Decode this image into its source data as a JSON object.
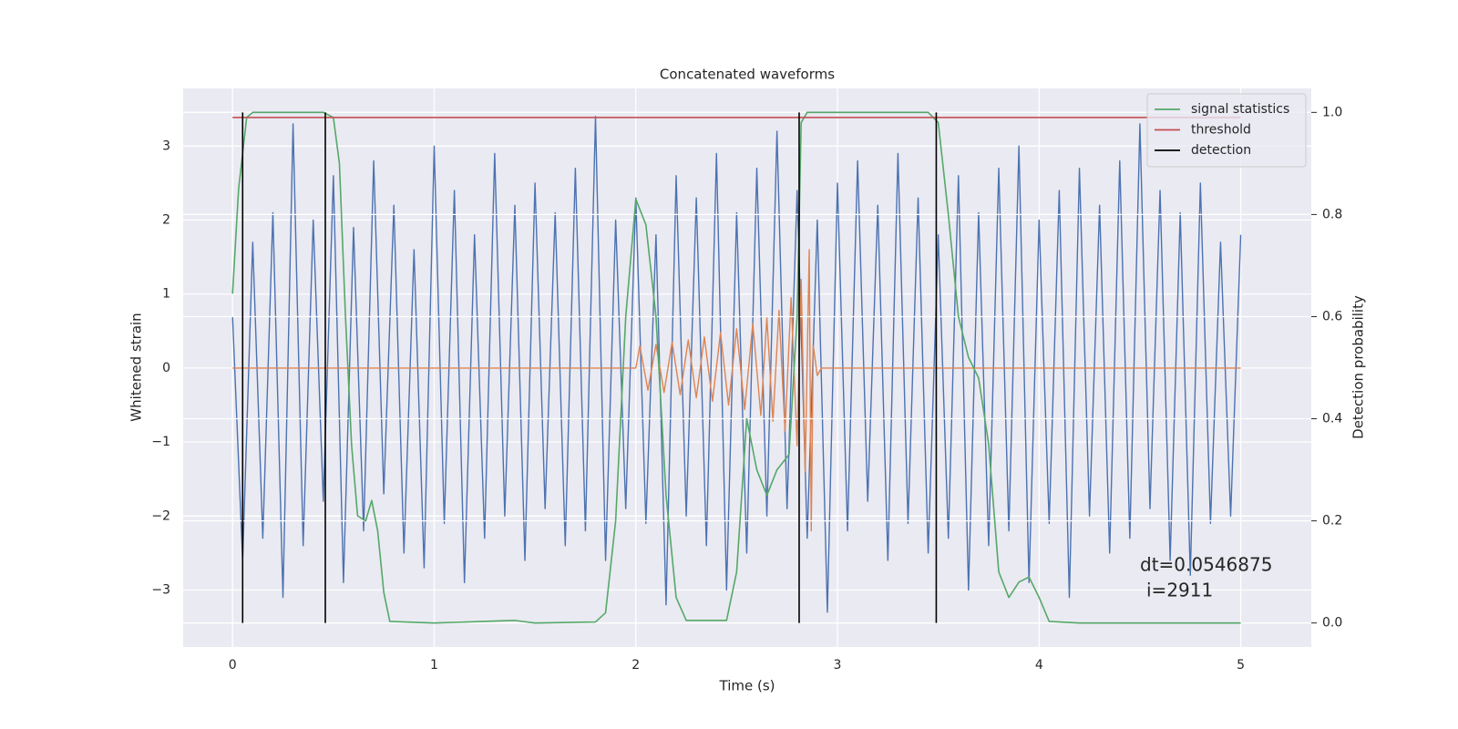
{
  "chart_data": {
    "type": "line",
    "title": "Concatenated waveforms",
    "xlabel": "Time (s)",
    "ylabel": "Whitened strain",
    "y2label": "Detection probability",
    "xlim": [
      -0.245,
      5.35
    ],
    "ylim": [
      -3.77,
      3.78
    ],
    "y2lim": [
      -0.047,
      1.047
    ],
    "xticks": [
      0,
      1,
      2,
      3,
      4,
      5
    ],
    "yticks": [
      {
        "value": -3,
        "label": "−3"
      },
      {
        "value": -2,
        "label": "−2"
      },
      {
        "value": -1,
        "label": "−1"
      },
      0,
      1,
      2,
      3
    ],
    "y2ticks": [
      {
        "value": 0,
        "label": "0.0"
      },
      0.2,
      0.4,
      0.6,
      0.8,
      {
        "value": 1,
        "label": "1.0"
      }
    ],
    "grid": true,
    "legend": "upper right",
    "series": [
      {
        "color": "#4c72b0",
        "x": [
          0,
          0.05,
          0.1,
          0.15,
          0.2,
          0.25,
          0.3,
          0.35,
          0.4,
          0.45,
          0.5,
          0.55,
          0.6,
          0.65,
          0.7,
          0.75,
          0.8,
          0.85,
          0.9,
          0.95,
          1.0,
          1.05,
          1.1,
          1.15,
          1.2,
          1.25,
          1.3,
          1.35,
          1.4,
          1.45,
          1.5,
          1.55,
          1.6,
          1.65,
          1.7,
          1.75,
          1.8,
          1.85,
          1.9,
          1.95,
          2.0,
          2.05,
          2.1,
          2.15,
          2.2,
          2.25,
          2.3,
          2.35,
          2.4,
          2.45,
          2.5,
          2.55,
          2.6,
          2.65,
          2.7,
          2.75,
          2.8,
          2.85,
          2.9,
          2.95,
          3.0,
          3.05,
          3.1,
          3.15,
          3.2,
          3.25,
          3.3,
          3.35,
          3.4,
          3.45,
          3.5,
          3.55,
          3.6,
          3.65,
          3.7,
          3.75,
          3.8,
          3.85,
          3.9,
          3.95,
          4.0,
          4.05,
          4.1,
          4.15,
          4.2,
          4.25,
          4.3,
          4.35,
          4.4,
          4.45,
          4.5,
          4.55,
          4.6,
          4.65,
          4.7,
          4.75,
          4.8,
          4.85,
          4.9,
          4.95,
          5.0
        ],
        "values": [
          0.7,
          -2.6,
          1.7,
          -2.3,
          2.1,
          -3.1,
          3.3,
          -2.4,
          2.0,
          -1.8,
          2.6,
          -2.9,
          1.9,
          -2.2,
          2.8,
          -1.7,
          2.2,
          -2.5,
          1.6,
          -2.7,
          3.0,
          -2.1,
          2.4,
          -2.9,
          1.8,
          -2.3,
          2.9,
          -2.0,
          2.2,
          -2.6,
          2.5,
          -1.9,
          2.1,
          -2.4,
          2.7,
          -2.2,
          3.4,
          -2.6,
          2.0,
          -1.9,
          2.3,
          -2.1,
          1.8,
          -3.2,
          2.6,
          -2.0,
          2.3,
          -2.4,
          2.9,
          -3.0,
          2.1,
          -2.5,
          2.7,
          -2.0,
          3.2,
          -1.9,
          2.4,
          -2.3,
          2.0,
          -3.3,
          2.5,
          -2.2,
          2.8,
          -1.8,
          2.2,
          -2.6,
          2.9,
          -2.1,
          2.3,
          -2.5,
          1.8,
          -2.3,
          2.6,
          -3.0,
          2.1,
          -2.4,
          2.7,
          -2.2,
          3.0,
          -2.9,
          2.0,
          -2.1,
          2.4,
          -3.1,
          2.7,
          -2.0,
          2.2,
          -2.5,
          2.8,
          -2.3,
          3.3,
          -1.9,
          2.4,
          -2.6,
          2.1,
          -2.8,
          2.5,
          -2.1,
          1.7,
          -2.0,
          1.8
        ]
      },
      {
        "color": "#dd8452",
        "x": [
          0,
          2.0,
          2.02,
          2.06,
          2.1,
          2.14,
          2.18,
          2.22,
          2.26,
          2.3,
          2.34,
          2.38,
          2.42,
          2.46,
          2.5,
          2.54,
          2.58,
          2.62,
          2.65,
          2.68,
          2.71,
          2.74,
          2.77,
          2.8,
          2.82,
          2.84,
          2.86,
          2.87,
          2.88,
          2.9,
          2.92,
          5.0
        ],
        "values": [
          0,
          0,
          0.3,
          -0.3,
          0.32,
          -0.33,
          0.35,
          -0.36,
          0.38,
          -0.4,
          0.42,
          -0.45,
          0.48,
          -0.5,
          0.53,
          -0.56,
          0.6,
          -0.64,
          0.68,
          -0.72,
          0.78,
          -0.85,
          0.95,
          -1.05,
          1.2,
          -1.4,
          1.6,
          -2.2,
          0.3,
          -0.1,
          0,
          0
        ]
      },
      {
        "name": "signal statistics",
        "color": "#55a868",
        "axis": "y2",
        "x": [
          0,
          0.03,
          0.07,
          0.1,
          0.45,
          0.5,
          0.53,
          0.56,
          0.59,
          0.62,
          0.66,
          0.69,
          0.72,
          0.75,
          0.78,
          1.0,
          1.4,
          1.5,
          1.8,
          1.85,
          1.9,
          1.95,
          2.0,
          2.05,
          2.1,
          2.15,
          2.2,
          2.25,
          2.45,
          2.5,
          2.55,
          2.6,
          2.65,
          2.7,
          2.76,
          2.8,
          2.82,
          2.85,
          3.45,
          3.5,
          3.55,
          3.6,
          3.65,
          3.7,
          3.75,
          3.8,
          3.85,
          3.9,
          3.95,
          4.0,
          4.05,
          4.2,
          5.0
        ],
        "values": [
          0.645,
          0.85,
          0.99,
          1.0,
          1.0,
          0.99,
          0.9,
          0.6,
          0.35,
          0.21,
          0.2,
          0.24,
          0.18,
          0.06,
          0.003,
          0.0,
          0.005,
          0.0,
          0.002,
          0.02,
          0.2,
          0.6,
          0.83,
          0.78,
          0.6,
          0.25,
          0.05,
          0.005,
          0.005,
          0.1,
          0.4,
          0.3,
          0.25,
          0.3,
          0.33,
          0.6,
          0.98,
          1.0,
          1.0,
          0.98,
          0.8,
          0.6,
          0.52,
          0.48,
          0.35,
          0.1,
          0.05,
          0.08,
          0.09,
          0.05,
          0.003,
          0.0,
          0.0
        ]
      },
      {
        "name": "threshold",
        "color": "#c44e52",
        "axis": "y2",
        "x": [
          0,
          5.0
        ],
        "values": [
          0.99,
          0.99
        ]
      }
    ],
    "detections": {
      "name": "detection",
      "color": "#000000",
      "axis": "y2",
      "x": [
        0.05,
        0.46,
        2.81,
        3.49
      ],
      "ymin": 0,
      "ymax": 1
    },
    "annotation": [
      "dt=0.0546875",
      "i=2911"
    ]
  }
}
